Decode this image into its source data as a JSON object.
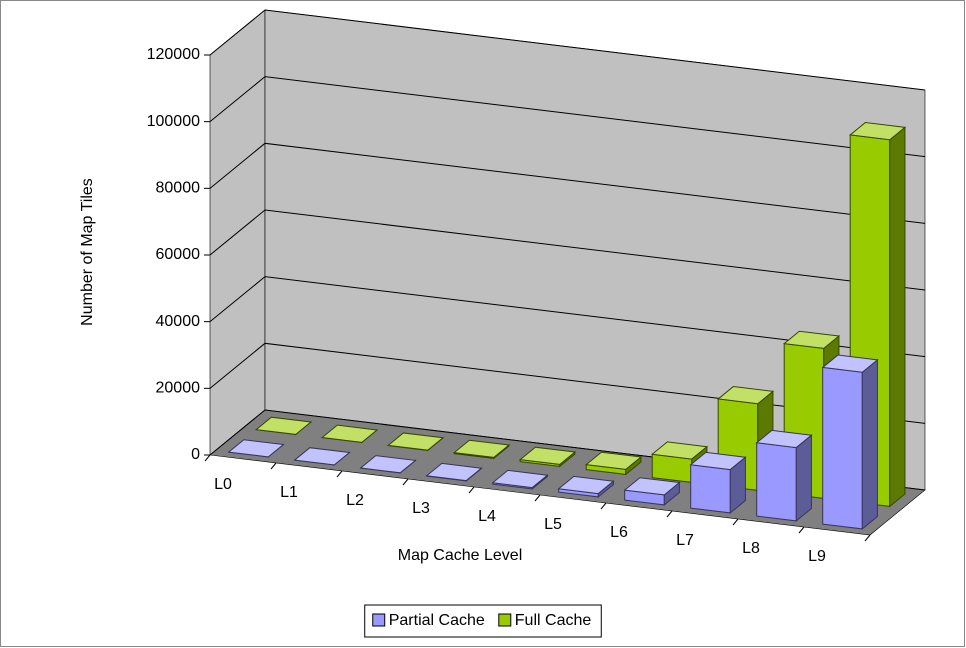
{
  "chart_data": {
    "type": "bar3d",
    "y_label": "Number of Map Tiles",
    "x_label": "Map Cache Level",
    "categories": [
      "L0",
      "L1",
      "L2",
      "L3",
      "L4",
      "L5",
      "L6",
      "L7",
      "L8",
      "L9"
    ],
    "series": [
      {
        "name": "Partial Cache",
        "color": "#9999ff",
        "values": [
          2,
          8,
          30,
          100,
          400,
          1000,
          3000,
          13000,
          22000,
          47000
        ]
      },
      {
        "name": "Full Cache",
        "color": "#99cc00",
        "values": [
          5,
          20,
          80,
          300,
          600,
          1500,
          7000,
          26000,
          45000,
          110000
        ]
      }
    ],
    "ylim": [
      0,
      120000
    ],
    "yticks": [
      0,
      20000,
      40000,
      60000,
      80000,
      100000,
      120000
    ],
    "grid": true,
    "legend": "bottom"
  }
}
